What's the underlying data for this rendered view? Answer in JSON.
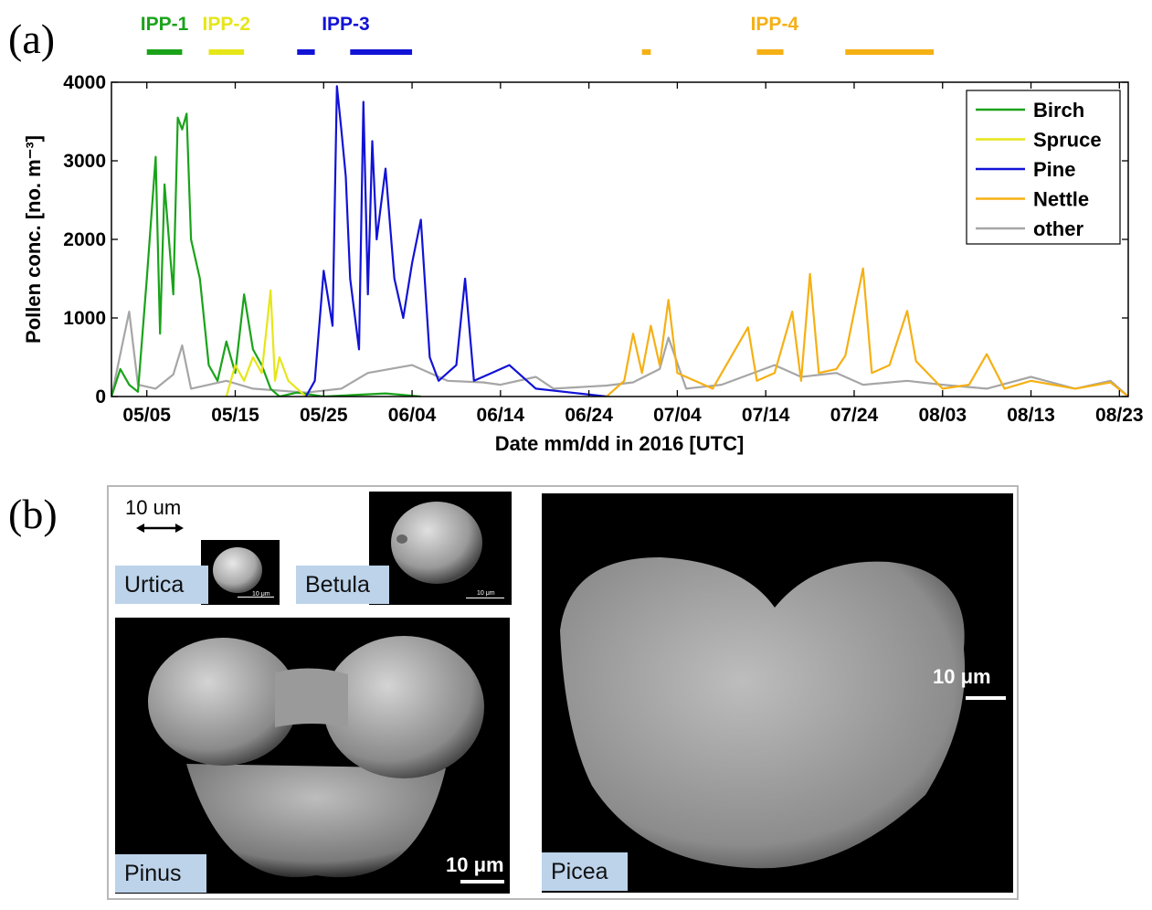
{
  "panel_labels": {
    "a": "(a)",
    "b": "(b)"
  },
  "chart_data": {
    "type": "line",
    "title": "",
    "xlabel": "Date mm/dd in 2016 [UTC]",
    "ylabel": "Pollen conc. [no. m⁻³]",
    "ylim": [
      0,
      4000
    ],
    "xlim": [
      "2016-05-01",
      "2016-08-24"
    ],
    "x_ticks": [
      "2016-05-05",
      "2016-05-15",
      "2016-05-25",
      "2016-06-04",
      "2016-06-14",
      "2016-06-24",
      "2016-07-04",
      "2016-07-14",
      "2016-07-24",
      "2016-08-03",
      "2016-08-13",
      "2016-08-23"
    ],
    "x_tick_labels": [
      "05/05",
      "05/15",
      "05/25",
      "06/04",
      "06/14",
      "06/24",
      "07/04",
      "07/14",
      "07/24",
      "08/03",
      "08/13",
      "08/23"
    ],
    "y_ticks": [
      0,
      1000,
      2000,
      3000,
      4000
    ],
    "y_tick_labels": [
      "0",
      "1000",
      "2000",
      "3000",
      "4000"
    ],
    "grid": false,
    "legend": {
      "placement": "top-right"
    },
    "series": [
      {
        "name": "Birch",
        "color": "#1aa31a",
        "points": [
          [
            "2016-05-01",
            0
          ],
          [
            "2016-05-02",
            350
          ],
          [
            "2016-05-03",
            150
          ],
          [
            "2016-05-04",
            60
          ],
          [
            "2016-05-05",
            1500
          ],
          [
            "2016-05-06",
            3050
          ],
          [
            "2016-05-06T12",
            800
          ],
          [
            "2016-05-07",
            2700
          ],
          [
            "2016-05-08",
            1300
          ],
          [
            "2016-05-08T12",
            3550
          ],
          [
            "2016-05-09",
            3400
          ],
          [
            "2016-05-09T12",
            3600
          ],
          [
            "2016-05-10",
            2000
          ],
          [
            "2016-05-11",
            1500
          ],
          [
            "2016-05-12",
            400
          ],
          [
            "2016-05-13",
            200
          ],
          [
            "2016-05-14",
            700
          ],
          [
            "2016-05-15",
            300
          ],
          [
            "2016-05-16",
            1300
          ],
          [
            "2016-05-17",
            600
          ],
          [
            "2016-05-18",
            400
          ],
          [
            "2016-05-19",
            100
          ],
          [
            "2016-05-20",
            0
          ],
          [
            "2016-05-22",
            50
          ],
          [
            "2016-05-25",
            0
          ],
          [
            "2016-06-01",
            40
          ],
          [
            "2016-06-05",
            0
          ]
        ]
      },
      {
        "name": "Spruce",
        "color": "#e6e619",
        "points": [
          [
            "2016-05-14",
            0
          ],
          [
            "2016-05-15",
            400
          ],
          [
            "2016-05-16",
            200
          ],
          [
            "2016-05-17",
            500
          ],
          [
            "2016-05-18",
            300
          ],
          [
            "2016-05-19",
            1350
          ],
          [
            "2016-05-19T12",
            200
          ],
          [
            "2016-05-20",
            500
          ],
          [
            "2016-05-21",
            200
          ],
          [
            "2016-05-22",
            100
          ],
          [
            "2016-05-23",
            0
          ]
        ]
      },
      {
        "name": "Pine",
        "color": "#1212d6",
        "points": [
          [
            "2016-05-23",
            0
          ],
          [
            "2016-05-24",
            200
          ],
          [
            "2016-05-25",
            1600
          ],
          [
            "2016-05-26",
            900
          ],
          [
            "2016-05-26T12",
            3950
          ],
          [
            "2016-05-27",
            3400
          ],
          [
            "2016-05-27T12",
            2800
          ],
          [
            "2016-05-28",
            1500
          ],
          [
            "2016-05-29",
            600
          ],
          [
            "2016-05-29T12",
            3750
          ],
          [
            "2016-05-30",
            1300
          ],
          [
            "2016-05-30T12",
            3250
          ],
          [
            "2016-05-31",
            2000
          ],
          [
            "2016-06-01",
            2900
          ],
          [
            "2016-06-02",
            1500
          ],
          [
            "2016-06-03",
            1000
          ],
          [
            "2016-06-04",
            1700
          ],
          [
            "2016-06-05",
            2250
          ],
          [
            "2016-06-06",
            500
          ],
          [
            "2016-06-07",
            200
          ],
          [
            "2016-06-09",
            400
          ],
          [
            "2016-06-10",
            1500
          ],
          [
            "2016-06-11",
            200
          ],
          [
            "2016-06-13",
            300
          ],
          [
            "2016-06-15",
            400
          ],
          [
            "2016-06-16",
            300
          ],
          [
            "2016-06-18",
            100
          ],
          [
            "2016-06-22",
            50
          ],
          [
            "2016-06-26",
            0
          ]
        ]
      },
      {
        "name": "Nettle",
        "color": "#f5b014",
        "points": [
          [
            "2016-06-26",
            0
          ],
          [
            "2016-06-28",
            200
          ],
          [
            "2016-06-29",
            800
          ],
          [
            "2016-06-30",
            300
          ],
          [
            "2016-07-01",
            900
          ],
          [
            "2016-07-02",
            400
          ],
          [
            "2016-07-03",
            1230
          ],
          [
            "2016-07-04",
            300
          ],
          [
            "2016-07-08",
            100
          ],
          [
            "2016-07-12",
            880
          ],
          [
            "2016-07-13",
            200
          ],
          [
            "2016-07-15",
            300
          ],
          [
            "2016-07-17",
            1080
          ],
          [
            "2016-07-18",
            200
          ],
          [
            "2016-07-19",
            1560
          ],
          [
            "2016-07-20",
            300
          ],
          [
            "2016-07-22",
            350
          ],
          [
            "2016-07-23",
            520
          ],
          [
            "2016-07-25",
            1630
          ],
          [
            "2016-07-26",
            300
          ],
          [
            "2016-07-28",
            400
          ],
          [
            "2016-07-30",
            1090
          ],
          [
            "2016-07-31",
            450
          ],
          [
            "2016-08-03",
            100
          ],
          [
            "2016-08-06",
            150
          ],
          [
            "2016-08-08",
            540
          ],
          [
            "2016-08-10",
            100
          ],
          [
            "2016-08-13",
            200
          ],
          [
            "2016-08-18",
            100
          ],
          [
            "2016-08-22",
            180
          ],
          [
            "2016-08-24",
            0
          ]
        ]
      },
      {
        "name": "other",
        "color": "#a6a6a6",
        "points": [
          [
            "2016-05-01",
            0
          ],
          [
            "2016-05-03",
            1080
          ],
          [
            "2016-05-04",
            150
          ],
          [
            "2016-05-06",
            100
          ],
          [
            "2016-05-08",
            280
          ],
          [
            "2016-05-09",
            650
          ],
          [
            "2016-05-10",
            100
          ],
          [
            "2016-05-14",
            200
          ],
          [
            "2016-05-17",
            100
          ],
          [
            "2016-05-23",
            50
          ],
          [
            "2016-05-27",
            100
          ],
          [
            "2016-05-30",
            300
          ],
          [
            "2016-06-04",
            400
          ],
          [
            "2016-06-08",
            200
          ],
          [
            "2016-06-12",
            180
          ],
          [
            "2016-06-14",
            150
          ],
          [
            "2016-06-18",
            250
          ],
          [
            "2016-06-20",
            100
          ],
          [
            "2016-06-26",
            140
          ],
          [
            "2016-06-29",
            180
          ],
          [
            "2016-07-02",
            350
          ],
          [
            "2016-07-03",
            750
          ],
          [
            "2016-07-05",
            100
          ],
          [
            "2016-07-09",
            150
          ],
          [
            "2016-07-15",
            400
          ],
          [
            "2016-07-18",
            250
          ],
          [
            "2016-07-22",
            300
          ],
          [
            "2016-07-25",
            150
          ],
          [
            "2016-07-30",
            200
          ],
          [
            "2016-08-03",
            150
          ],
          [
            "2016-08-08",
            100
          ],
          [
            "2016-08-13",
            250
          ],
          [
            "2016-08-18",
            100
          ],
          [
            "2016-08-22",
            200
          ],
          [
            "2016-08-24",
            0
          ]
        ]
      }
    ],
    "periods": [
      {
        "label": "IPP-1",
        "color": "#1aa31a",
        "label_shown": true,
        "ranges": [
          [
            "2016-05-05",
            "2016-05-09"
          ]
        ]
      },
      {
        "label": "IPP-2",
        "color": "#e6e619",
        "label_shown": true,
        "ranges": [
          [
            "2016-05-12",
            "2016-05-16"
          ]
        ]
      },
      {
        "label": "IPP-3",
        "color": "#1212d6",
        "label_shown": true,
        "ranges": [
          [
            "2016-05-22",
            "2016-05-24"
          ],
          [
            "2016-05-28",
            "2016-06-04"
          ]
        ]
      },
      {
        "label": "IPP-4",
        "color": "#f5b014",
        "label_shown": true,
        "ranges": [
          [
            "2016-06-30",
            "2016-07-01"
          ],
          [
            "2016-07-13",
            "2016-07-16"
          ],
          [
            "2016-07-23",
            "2016-08-02"
          ]
        ]
      }
    ]
  },
  "sem_images": [
    {
      "label": "Urtica",
      "scale_text": "10 μm"
    },
    {
      "label": "Betula",
      "scale_text": "10 μm"
    },
    {
      "label": "Pinus",
      "scale_text": "10 μm"
    },
    {
      "label": "Picea",
      "scale_text": "10 μm"
    }
  ],
  "reference_scale": {
    "text": "10 um"
  }
}
